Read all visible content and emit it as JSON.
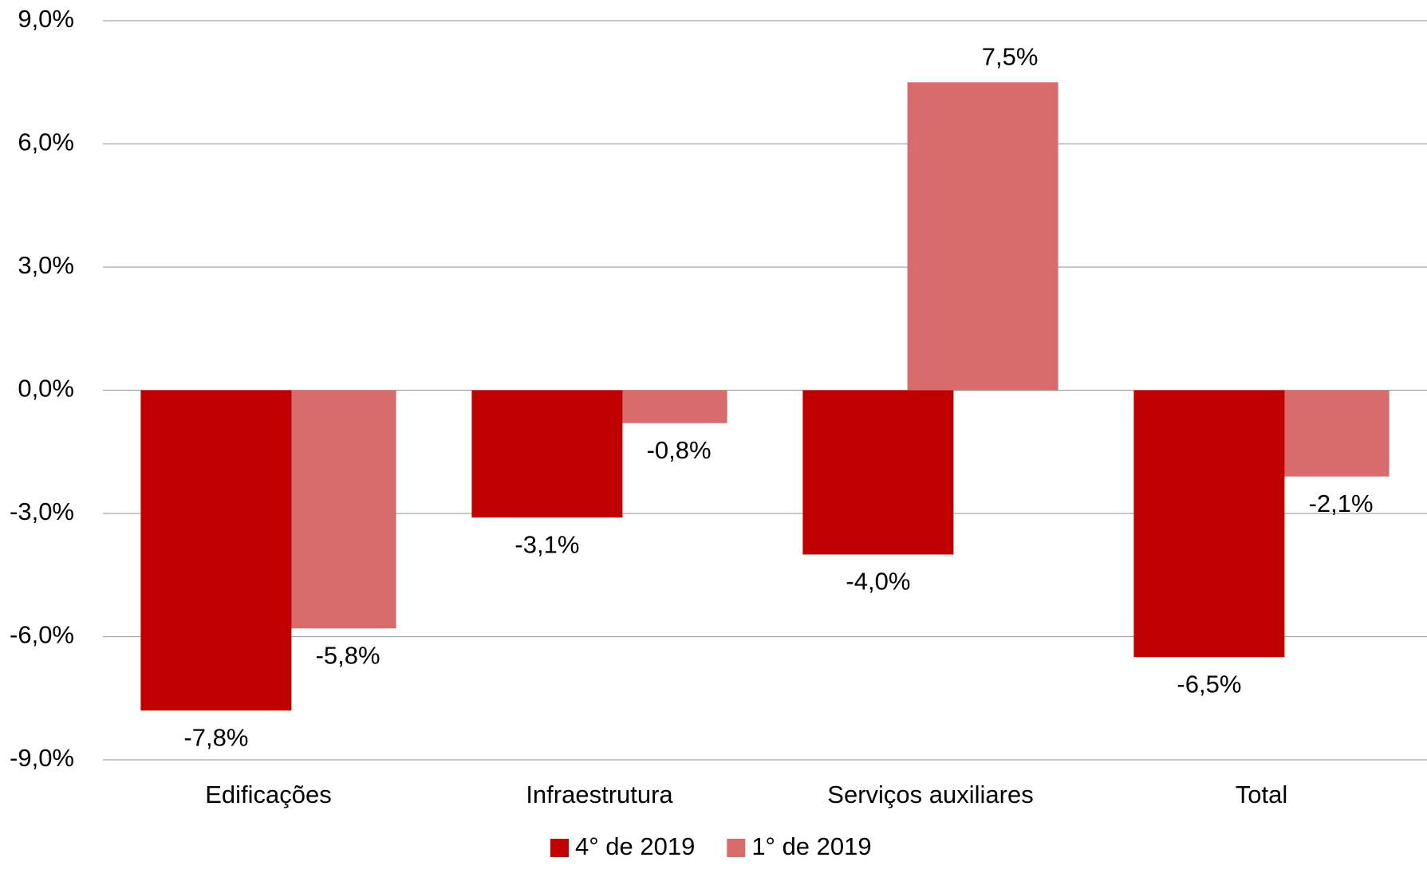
{
  "chart_data": {
    "type": "bar",
    "categories": [
      "Edificações",
      "Infraestrutura",
      "Serviços auxiliares",
      "Total"
    ],
    "series": [
      {
        "name": "4° de 2019",
        "color": "#c00000",
        "values": [
          -7.8,
          -3.1,
          -4.0,
          -6.5
        ],
        "value_labels": [
          "-7,8%",
          "-3,1%",
          "-4,0%",
          "-6,5%"
        ]
      },
      {
        "name": "1° de 2019",
        "color": "#d86b6b",
        "values": [
          -5.8,
          -0.8,
          7.5,
          -2.1
        ],
        "value_labels": [
          "-5,8%",
          "-0,8%",
          "7,5%",
          "-2,1%"
        ]
      }
    ],
    "ylim": [
      -9,
      9
    ],
    "yticks": [
      {
        "value": -9,
        "label": "-9,0%"
      },
      {
        "value": -6,
        "label": "-6,0%"
      },
      {
        "value": -3,
        "label": "-3,0%"
      },
      {
        "value": 0,
        "label": "0,0%"
      },
      {
        "value": 3,
        "label": "3,0%"
      },
      {
        "value": 6,
        "label": "6,0%"
      },
      {
        "value": 9,
        "label": "9,0%"
      }
    ],
    "grid": true,
    "legend": "bottom"
  }
}
